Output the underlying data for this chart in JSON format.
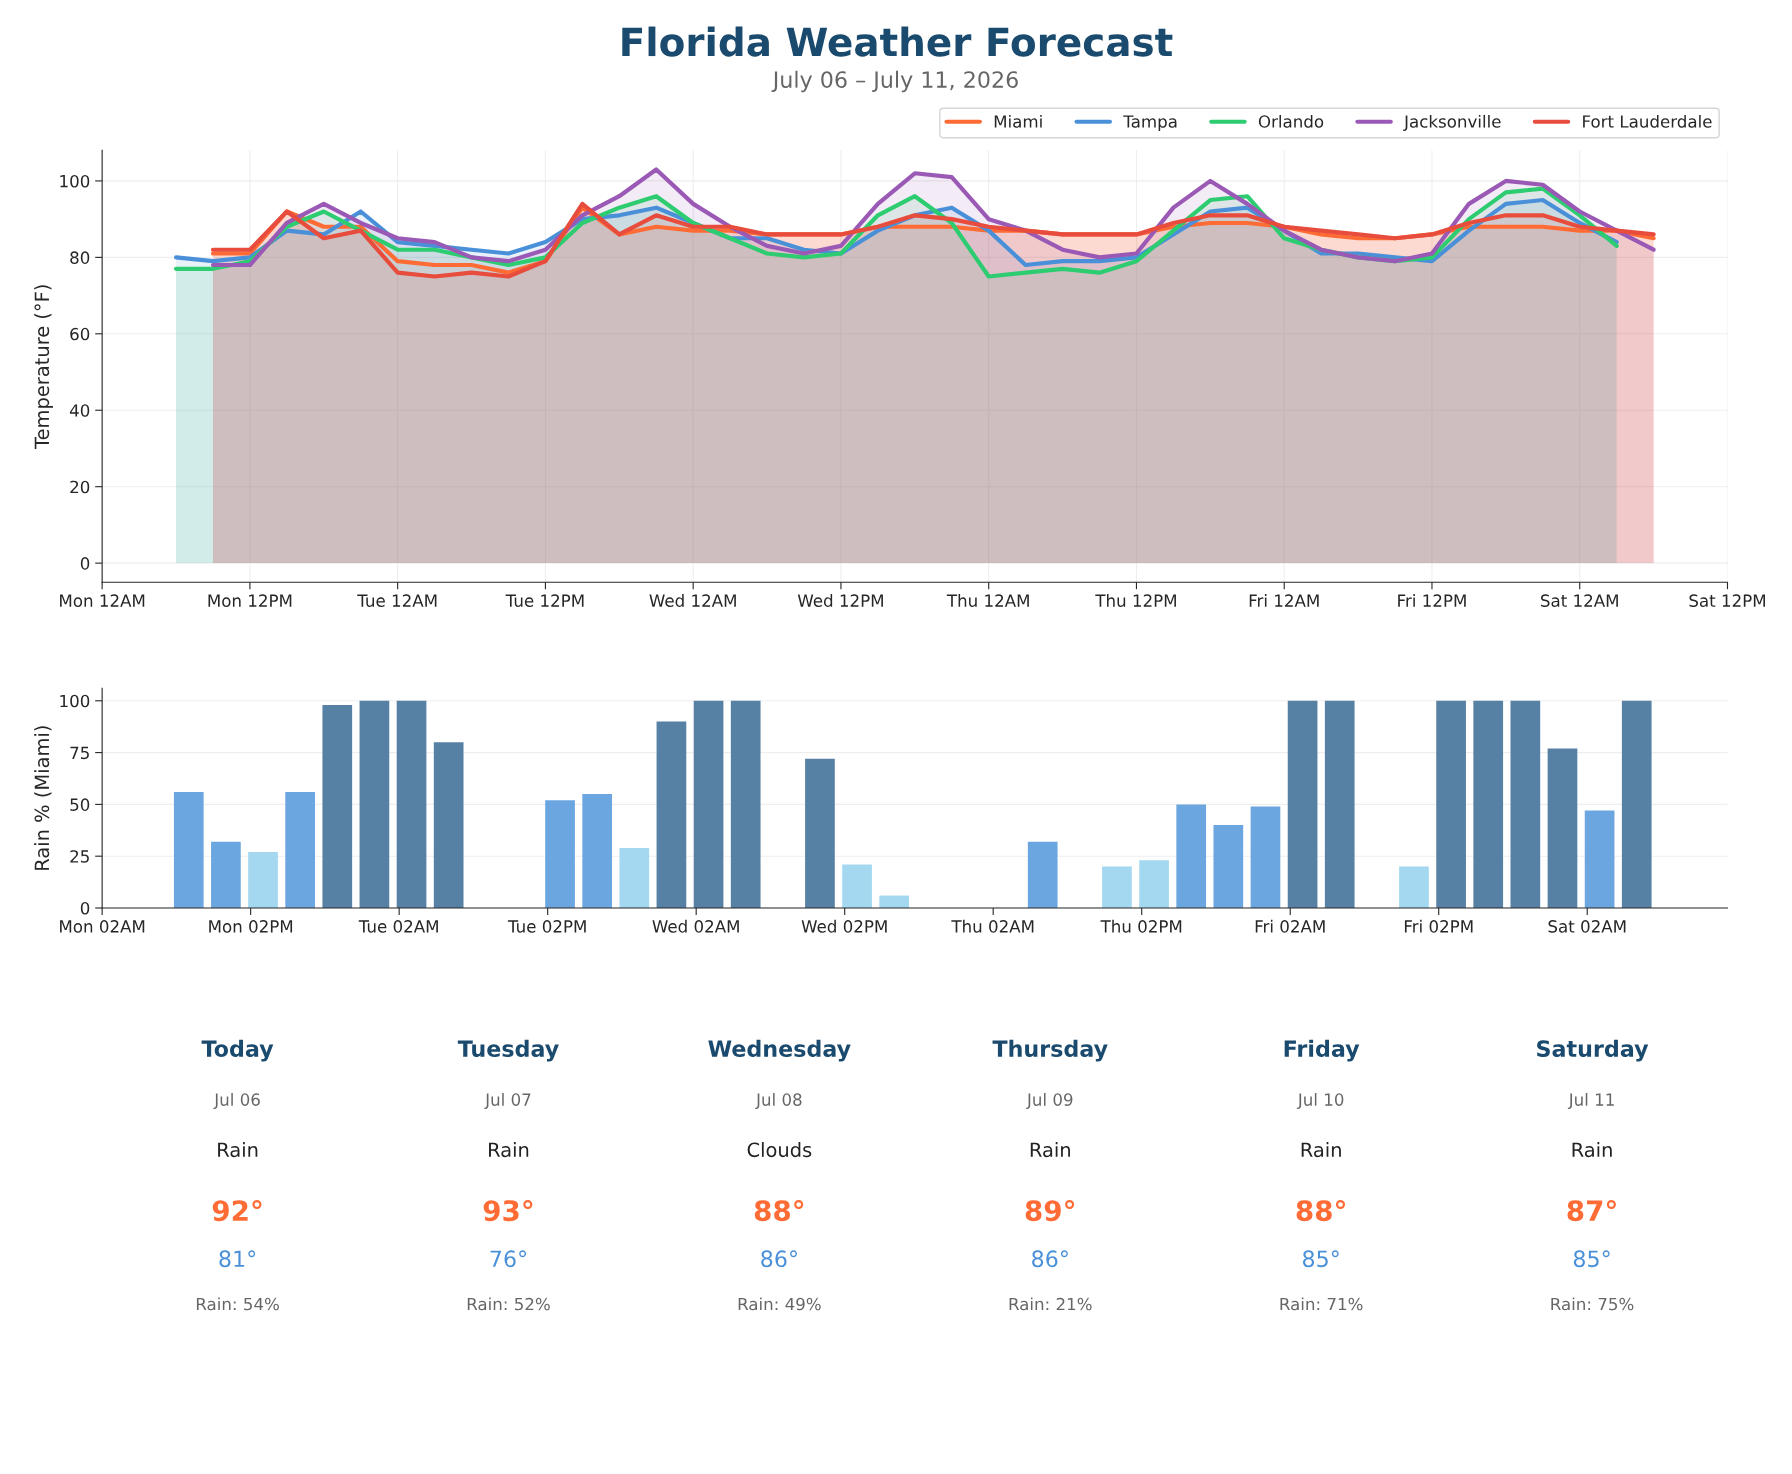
{
  "chart_data": [
    {
      "type": "area",
      "title": "Florida Weather Forecast",
      "subtitle": "July 06 – July 11, 2026",
      "ylabel": "Temperature (°F)",
      "xlim": [
        "2026-07-06T00:00",
        "2026-07-11T12:00"
      ],
      "xticks": [
        {
          "value": "2026-07-06T00:00",
          "label": "Mon 12AM"
        },
        {
          "value": "2026-07-06T12:00",
          "label": "Mon 12PM"
        },
        {
          "value": "2026-07-07T00:00",
          "label": "Tue 12AM"
        },
        {
          "value": "2026-07-07T12:00",
          "label": "Tue 12PM"
        },
        {
          "value": "2026-07-08T00:00",
          "label": "Wed 12AM"
        },
        {
          "value": "2026-07-08T12:00",
          "label": "Wed 12PM"
        },
        {
          "value": "2026-07-09T00:00",
          "label": "Thu 12AM"
        },
        {
          "value": "2026-07-09T12:00",
          "label": "Thu 12PM"
        },
        {
          "value": "2026-07-10T00:00",
          "label": "Fri 12AM"
        },
        {
          "value": "2026-07-10T12:00",
          "label": "Fri 12PM"
        },
        {
          "value": "2026-07-11T00:00",
          "label": "Sat 12AM"
        },
        {
          "value": "2026-07-11T12:00",
          "label": "Sat 12PM"
        }
      ],
      "ylim": [
        -5,
        108
      ],
      "yticks": [
        0,
        20,
        40,
        60,
        80,
        100
      ],
      "grid": true,
      "legend": "top right",
      "series": [
        {
          "name": "Miami",
          "color": "#ff6b35",
          "x": [
            "2026-07-06T09:00",
            "2026-07-06T12:00",
            "2026-07-06T15:00",
            "2026-07-06T18:00",
            "2026-07-06T21:00",
            "2026-07-07T00:00",
            "2026-07-07T03:00",
            "2026-07-07T06:00",
            "2026-07-07T09:00",
            "2026-07-07T12:00",
            "2026-07-07T15:00",
            "2026-07-07T18:00",
            "2026-07-07T21:00",
            "2026-07-08T00:00",
            "2026-07-08T03:00",
            "2026-07-08T06:00",
            "2026-07-08T09:00",
            "2026-07-08T12:00",
            "2026-07-08T15:00",
            "2026-07-08T18:00",
            "2026-07-08T21:00",
            "2026-07-09T00:00",
            "2026-07-09T03:00",
            "2026-07-09T06:00",
            "2026-07-09T09:00",
            "2026-07-09T12:00",
            "2026-07-09T15:00",
            "2026-07-09T18:00",
            "2026-07-09T21:00",
            "2026-07-10T00:00",
            "2026-07-10T03:00",
            "2026-07-10T06:00",
            "2026-07-10T09:00",
            "2026-07-10T12:00",
            "2026-07-10T15:00",
            "2026-07-10T18:00",
            "2026-07-10T21:00",
            "2026-07-11T00:00",
            "2026-07-11T03:00",
            "2026-07-11T06:00"
          ],
          "values": [
            81,
            81,
            92,
            88,
            88,
            79,
            78,
            78,
            76,
            79,
            93,
            86,
            88,
            87,
            87,
            86,
            86,
            86,
            88,
            88,
            88,
            87,
            87,
            86,
            86,
            86,
            88,
            89,
            89,
            88,
            86,
            85,
            85,
            86,
            88,
            88,
            88,
            87,
            87,
            85
          ]
        },
        {
          "name": "Tampa",
          "color": "#4a90d9",
          "x": [
            "2026-07-06T06:00",
            "2026-07-06T09:00",
            "2026-07-06T12:00",
            "2026-07-06T15:00",
            "2026-07-06T18:00",
            "2026-07-06T21:00",
            "2026-07-07T00:00",
            "2026-07-07T03:00",
            "2026-07-07T06:00",
            "2026-07-07T09:00",
            "2026-07-07T12:00",
            "2026-07-07T15:00",
            "2026-07-07T18:00",
            "2026-07-07T21:00",
            "2026-07-08T00:00",
            "2026-07-08T03:00",
            "2026-07-08T06:00",
            "2026-07-08T09:00",
            "2026-07-08T12:00",
            "2026-07-08T15:00",
            "2026-07-08T18:00",
            "2026-07-08T21:00",
            "2026-07-09T00:00",
            "2026-07-09T03:00",
            "2026-07-09T06:00",
            "2026-07-09T09:00",
            "2026-07-09T12:00",
            "2026-07-09T15:00",
            "2026-07-09T18:00",
            "2026-07-09T21:00",
            "2026-07-10T00:00",
            "2026-07-10T03:00",
            "2026-07-10T06:00",
            "2026-07-10T09:00",
            "2026-07-10T12:00",
            "2026-07-10T15:00",
            "2026-07-10T18:00",
            "2026-07-10T21:00",
            "2026-07-11T00:00",
            "2026-07-11T03:00"
          ],
          "values": [
            80,
            79,
            80,
            87,
            86,
            92,
            84,
            83,
            82,
            81,
            84,
            90,
            91,
            93,
            89,
            85,
            85,
            82,
            81,
            87,
            91,
            93,
            87,
            78,
            79,
            79,
            80,
            86,
            92,
            93,
            87,
            81,
            81,
            80,
            79,
            87,
            94,
            95,
            89,
            84
          ]
        },
        {
          "name": "Orlando",
          "color": "#2ecc71",
          "x": [
            "2026-07-06T06:00",
            "2026-07-06T09:00",
            "2026-07-06T12:00",
            "2026-07-06T15:00",
            "2026-07-06T18:00",
            "2026-07-06T21:00",
            "2026-07-07T00:00",
            "2026-07-07T03:00",
            "2026-07-07T06:00",
            "2026-07-07T09:00",
            "2026-07-07T12:00",
            "2026-07-07T15:00",
            "2026-07-07T18:00",
            "2026-07-07T21:00",
            "2026-07-08T00:00",
            "2026-07-08T03:00",
            "2026-07-08T06:00",
            "2026-07-08T09:00",
            "2026-07-08T12:00",
            "2026-07-08T15:00",
            "2026-07-08T18:00",
            "2026-07-08T21:00",
            "2026-07-09T00:00",
            "2026-07-09T03:00",
            "2026-07-09T06:00",
            "2026-07-09T09:00",
            "2026-07-09T12:00",
            "2026-07-09T15:00",
            "2026-07-09T18:00",
            "2026-07-09T21:00",
            "2026-07-10T00:00",
            "2026-07-10T03:00",
            "2026-07-10T06:00",
            "2026-07-10T09:00",
            "2026-07-10T12:00",
            "2026-07-10T15:00",
            "2026-07-10T18:00",
            "2026-07-10T21:00",
            "2026-07-11T00:00",
            "2026-07-11T03:00"
          ],
          "values": [
            77,
            77,
            79,
            88,
            92,
            87,
            82,
            82,
            80,
            78,
            80,
            89,
            93,
            96,
            89,
            85,
            81,
            80,
            81,
            91,
            96,
            89,
            75,
            76,
            77,
            76,
            79,
            87,
            95,
            96,
            85,
            82,
            80,
            79,
            80,
            90,
            97,
            98,
            91,
            83
          ]
        },
        {
          "name": "Jacksonville",
          "color": "#9b59b6",
          "x": [
            "2026-07-06T09:00",
            "2026-07-06T12:00",
            "2026-07-06T15:00",
            "2026-07-06T18:00",
            "2026-07-06T21:00",
            "2026-07-07T00:00",
            "2026-07-07T03:00",
            "2026-07-07T06:00",
            "2026-07-07T09:00",
            "2026-07-07T12:00",
            "2026-07-07T15:00",
            "2026-07-07T18:00",
            "2026-07-07T21:00",
            "2026-07-08T00:00",
            "2026-07-08T03:00",
            "2026-07-08T06:00",
            "2026-07-08T09:00",
            "2026-07-08T12:00",
            "2026-07-08T15:00",
            "2026-07-08T18:00",
            "2026-07-08T21:00",
            "2026-07-09T00:00",
            "2026-07-09T03:00",
            "2026-07-09T06:00",
            "2026-07-09T09:00",
            "2026-07-09T12:00",
            "2026-07-09T15:00",
            "2026-07-09T18:00",
            "2026-07-09T21:00",
            "2026-07-10T00:00",
            "2026-07-10T03:00",
            "2026-07-10T06:00",
            "2026-07-10T09:00",
            "2026-07-10T12:00",
            "2026-07-10T15:00",
            "2026-07-10T18:00",
            "2026-07-10T21:00",
            "2026-07-11T00:00",
            "2026-07-11T03:00",
            "2026-07-11T06:00"
          ],
          "values": [
            78,
            78,
            89,
            94,
            89,
            85,
            84,
            80,
            79,
            82,
            91,
            96,
            103,
            94,
            88,
            83,
            81,
            83,
            94,
            102,
            101,
            90,
            87,
            82,
            80,
            81,
            93,
            100,
            94,
            87,
            82,
            80,
            79,
            81,
            94,
            100,
            99,
            92,
            87,
            82
          ]
        },
        {
          "name": "Fort Lauderdale",
          "color": "#e74c3c",
          "x": [
            "2026-07-06T09:00",
            "2026-07-06T12:00",
            "2026-07-06T15:00",
            "2026-07-06T18:00",
            "2026-07-06T21:00",
            "2026-07-07T00:00",
            "2026-07-07T03:00",
            "2026-07-07T06:00",
            "2026-07-07T09:00",
            "2026-07-07T12:00",
            "2026-07-07T15:00",
            "2026-07-07T18:00",
            "2026-07-07T21:00",
            "2026-07-08T00:00",
            "2026-07-08T03:00",
            "2026-07-08T06:00",
            "2026-07-08T09:00",
            "2026-07-08T12:00",
            "2026-07-08T15:00",
            "2026-07-08T18:00",
            "2026-07-08T21:00",
            "2026-07-09T00:00",
            "2026-07-09T03:00",
            "2026-07-09T06:00",
            "2026-07-09T09:00",
            "2026-07-09T12:00",
            "2026-07-09T15:00",
            "2026-07-09T18:00",
            "2026-07-09T21:00",
            "2026-07-10T00:00",
            "2026-07-10T03:00",
            "2026-07-10T06:00",
            "2026-07-10T09:00",
            "2026-07-10T12:00",
            "2026-07-10T15:00",
            "2026-07-10T18:00",
            "2026-07-10T21:00",
            "2026-07-11T00:00",
            "2026-07-11T03:00",
            "2026-07-11T06:00"
          ],
          "values": [
            82,
            82,
            92,
            85,
            87,
            76,
            75,
            76,
            75,
            79,
            94,
            86,
            91,
            88,
            88,
            86,
            86,
            86,
            88,
            91,
            90,
            88,
            87,
            86,
            86,
            86,
            89,
            91,
            91,
            88,
            87,
            86,
            85,
            86,
            89,
            91,
            91,
            88,
            87,
            86
          ]
        }
      ]
    },
    {
      "type": "bar",
      "ylabel": "Rain % (Miami)",
      "xlim": [
        "2026-07-06T02:00",
        "2026-07-11T13:20"
      ],
      "xticks": [
        {
          "value": "2026-07-06T02:00",
          "label": "Mon 02AM"
        },
        {
          "value": "2026-07-06T14:00",
          "label": "Mon 02PM"
        },
        {
          "value": "2026-07-07T02:00",
          "label": "Tue 02AM"
        },
        {
          "value": "2026-07-07T14:00",
          "label": "Tue 02PM"
        },
        {
          "value": "2026-07-08T02:00",
          "label": "Wed 02AM"
        },
        {
          "value": "2026-07-08T14:00",
          "label": "Wed 02PM"
        },
        {
          "value": "2026-07-09T02:00",
          "label": "Thu 02AM"
        },
        {
          "value": "2026-07-09T14:00",
          "label": "Thu 02PM"
        },
        {
          "value": "2026-07-10T02:00",
          "label": "Fri 02AM"
        },
        {
          "value": "2026-07-10T14:00",
          "label": "Fri 02PM"
        },
        {
          "value": "2026-07-11T02:00",
          "label": "Sat 02AM"
        }
      ],
      "ylim": [
        0,
        106
      ],
      "yticks": [
        0,
        25,
        50,
        75,
        100
      ],
      "grid": "y",
      "x": [
        "2026-07-06T09:00",
        "2026-07-06T12:00",
        "2026-07-06T15:00",
        "2026-07-06T18:00",
        "2026-07-06T21:00",
        "2026-07-07T00:00",
        "2026-07-07T03:00",
        "2026-07-07T06:00",
        "2026-07-07T09:00",
        "2026-07-07T12:00",
        "2026-07-07T15:00",
        "2026-07-07T18:00",
        "2026-07-07T21:00",
        "2026-07-08T00:00",
        "2026-07-08T03:00",
        "2026-07-08T06:00",
        "2026-07-08T09:00",
        "2026-07-08T12:00",
        "2026-07-08T15:00",
        "2026-07-08T18:00",
        "2026-07-08T21:00",
        "2026-07-09T00:00",
        "2026-07-09T03:00",
        "2026-07-09T06:00",
        "2026-07-09T09:00",
        "2026-07-09T12:00",
        "2026-07-09T15:00",
        "2026-07-09T18:00",
        "2026-07-09T21:00",
        "2026-07-10T00:00",
        "2026-07-10T03:00",
        "2026-07-10T06:00",
        "2026-07-10T09:00",
        "2026-07-10T12:00",
        "2026-07-10T15:00",
        "2026-07-10T18:00",
        "2026-07-10T21:00",
        "2026-07-11T00:00",
        "2026-07-11T03:00",
        "2026-07-11T06:00"
      ],
      "values": [
        56,
        32,
        27,
        56,
        98,
        100,
        100,
        80,
        0,
        0,
        52,
        55,
        29,
        90,
        100,
        100,
        0,
        72,
        21,
        6,
        0,
        0,
        0,
        32,
        0,
        20,
        23,
        50,
        40,
        49,
        100,
        100,
        0,
        20,
        100,
        100,
        100,
        77,
        47,
        100
      ],
      "colors": [
        "#6ca6e0",
        "#6ca6e0",
        "#a3d8f0",
        "#6ca6e0",
        "#5680a4",
        "#5680a4",
        "#5680a4",
        "#5680a4",
        "#a3d8f0",
        "#a3d8f0",
        "#6ca6e0",
        "#6ca6e0",
        "#a3d8f0",
        "#5680a4",
        "#5680a4",
        "#5680a4",
        "#a3d8f0",
        "#5680a4",
        "#a3d8f0",
        "#a3d8f0",
        "#a3d8f0",
        "#a3d8f0",
        "#a3d8f0",
        "#6ca6e0",
        "#a3d8f0",
        "#a3d8f0",
        "#a3d8f0",
        "#6ca6e0",
        "#6ca6e0",
        "#6ca6e0",
        "#5680a4",
        "#5680a4",
        "#a3d8f0",
        "#a3d8f0",
        "#5680a4",
        "#5680a4",
        "#5680a4",
        "#5680a4",
        "#6ca6e0",
        "#5680a4"
      ]
    },
    {
      "type": "other",
      "categories": [
        "Today",
        "Tuesday",
        "Wednesday",
        "Thursday",
        "Friday",
        "Saturday"
      ],
      "annotations": [
        "Jul 06",
        "Rain",
        "92°",
        "81°",
        "Rain: 54%",
        "Jul 07",
        "Rain",
        "93°",
        "76°",
        "Rain: 52%",
        "Jul 08",
        "Clouds",
        "88°",
        "86°",
        "Rain: 49%",
        "Jul 09",
        "Rain",
        "89°",
        "86°",
        "Rain: 21%",
        "Jul 10",
        "Rain",
        "88°",
        "85°",
        "Rain: 71%",
        "Jul 11",
        "Rain",
        "87°",
        "85°",
        "Rain: 75%"
      ]
    }
  ]
}
